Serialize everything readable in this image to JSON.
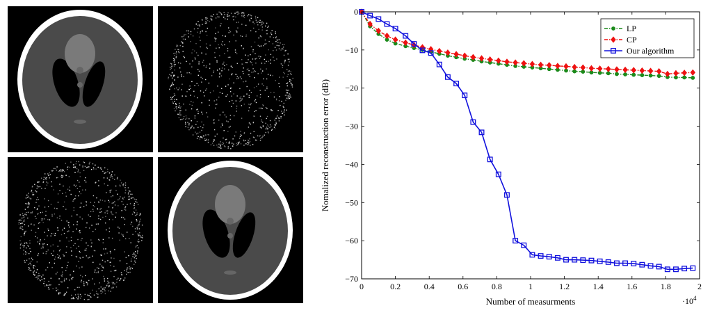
{
  "images": [
    {
      "name": "phantom-original"
    },
    {
      "name": "phantom-lp-reconstruction"
    },
    {
      "name": "phantom-cp-reconstruction"
    },
    {
      "name": "phantom-our-reconstruction"
    }
  ],
  "colors": {
    "lp": "#1b8a1b",
    "cp": "#ee1111",
    "ours": "#1111dd"
  },
  "chart_data": {
    "type": "line",
    "title": "",
    "xlabel": "Number of measurments",
    "ylabel": "Nomalized reconstruction error (dB)",
    "x_exponent": "·10",
    "x_exponent_power": "4",
    "xlim": [
      0,
      2
    ],
    "ylim": [
      -70,
      0
    ],
    "xticks": [
      0,
      0.2,
      0.4,
      0.6,
      0.8,
      1,
      1.2,
      1.4,
      1.6,
      1.8,
      2
    ],
    "xtick_labels": [
      "0",
      "0.2",
      "0.4",
      "0.6",
      "0.8",
      "1",
      "1.2",
      "1.4",
      "1.6",
      "1.8",
      "2"
    ],
    "yticks": [
      0,
      -10,
      -20,
      -30,
      -40,
      -50,
      -60,
      -70
    ],
    "ytick_labels": [
      "0",
      "−10",
      "−20",
      "−30",
      "−40",
      "−50",
      "−60",
      "−70"
    ],
    "legend_position": "top-right",
    "x": [
      0,
      0.05,
      0.1,
      0.15,
      0.2,
      0.26,
      0.31,
      0.36,
      0.41,
      0.46,
      0.51,
      0.56,
      0.61,
      0.66,
      0.71,
      0.76,
      0.81,
      0.86,
      0.91,
      0.96,
      1.01,
      1.06,
      1.11,
      1.16,
      1.21,
      1.26,
      1.31,
      1.36,
      1.41,
      1.46,
      1.51,
      1.56,
      1.61,
      1.66,
      1.71,
      1.76,
      1.81,
      1.86,
      1.91,
      1.96
    ],
    "series": [
      {
        "name": "LP",
        "marker": "circle",
        "dashed": true,
        "values": [
          0,
          -3.8,
          -5.8,
          -7.3,
          -8.3,
          -9.0,
          -9.5,
          -10.0,
          -10.5,
          -11.0,
          -11.5,
          -11.9,
          -12.3,
          -12.6,
          -13.0,
          -13.3,
          -13.6,
          -13.9,
          -14.2,
          -14.4,
          -14.6,
          -14.8,
          -15.0,
          -15.2,
          -15.4,
          -15.6,
          -15.7,
          -15.9,
          -16.0,
          -16.1,
          -16.3,
          -16.4,
          -16.5,
          -16.6,
          -16.7,
          -16.8,
          -17.1,
          -17.2,
          -17.2,
          -17.3
        ]
      },
      {
        "name": "CP",
        "marker": "diamond",
        "dashed": true,
        "values": [
          0,
          -3.2,
          -5.0,
          -6.3,
          -7.3,
          -8.1,
          -8.7,
          -9.3,
          -9.8,
          -10.3,
          -10.7,
          -11.1,
          -11.5,
          -11.9,
          -12.2,
          -12.5,
          -12.8,
          -13.1,
          -13.3,
          -13.5,
          -13.7,
          -13.9,
          -14.0,
          -14.2,
          -14.3,
          -14.5,
          -14.6,
          -14.8,
          -14.9,
          -15.0,
          -15.1,
          -15.2,
          -15.3,
          -15.4,
          -15.5,
          -15.6,
          -16.3,
          -16.1,
          -16.0,
          -15.9
        ]
      },
      {
        "name": "Our algorithm",
        "marker": "square",
        "dashed": false,
        "values": [
          0,
          -1.0,
          -1.9,
          -3.2,
          -4.4,
          -6.3,
          -8.4,
          -10.1,
          -10.8,
          -13.8,
          -17.1,
          -18.8,
          -21.9,
          -28.9,
          -31.6,
          -38.7,
          -42.6,
          -48.0,
          -60.0,
          -61.2,
          -63.7,
          -64.0,
          -64.2,
          -64.5,
          -65.0,
          -65.0,
          -65.1,
          -65.2,
          -65.4,
          -65.6,
          -65.9,
          -65.9,
          -66.0,
          -66.3,
          -66.6,
          -66.8,
          -67.5,
          -67.5,
          -67.3,
          -67.2
        ]
      }
    ]
  }
}
